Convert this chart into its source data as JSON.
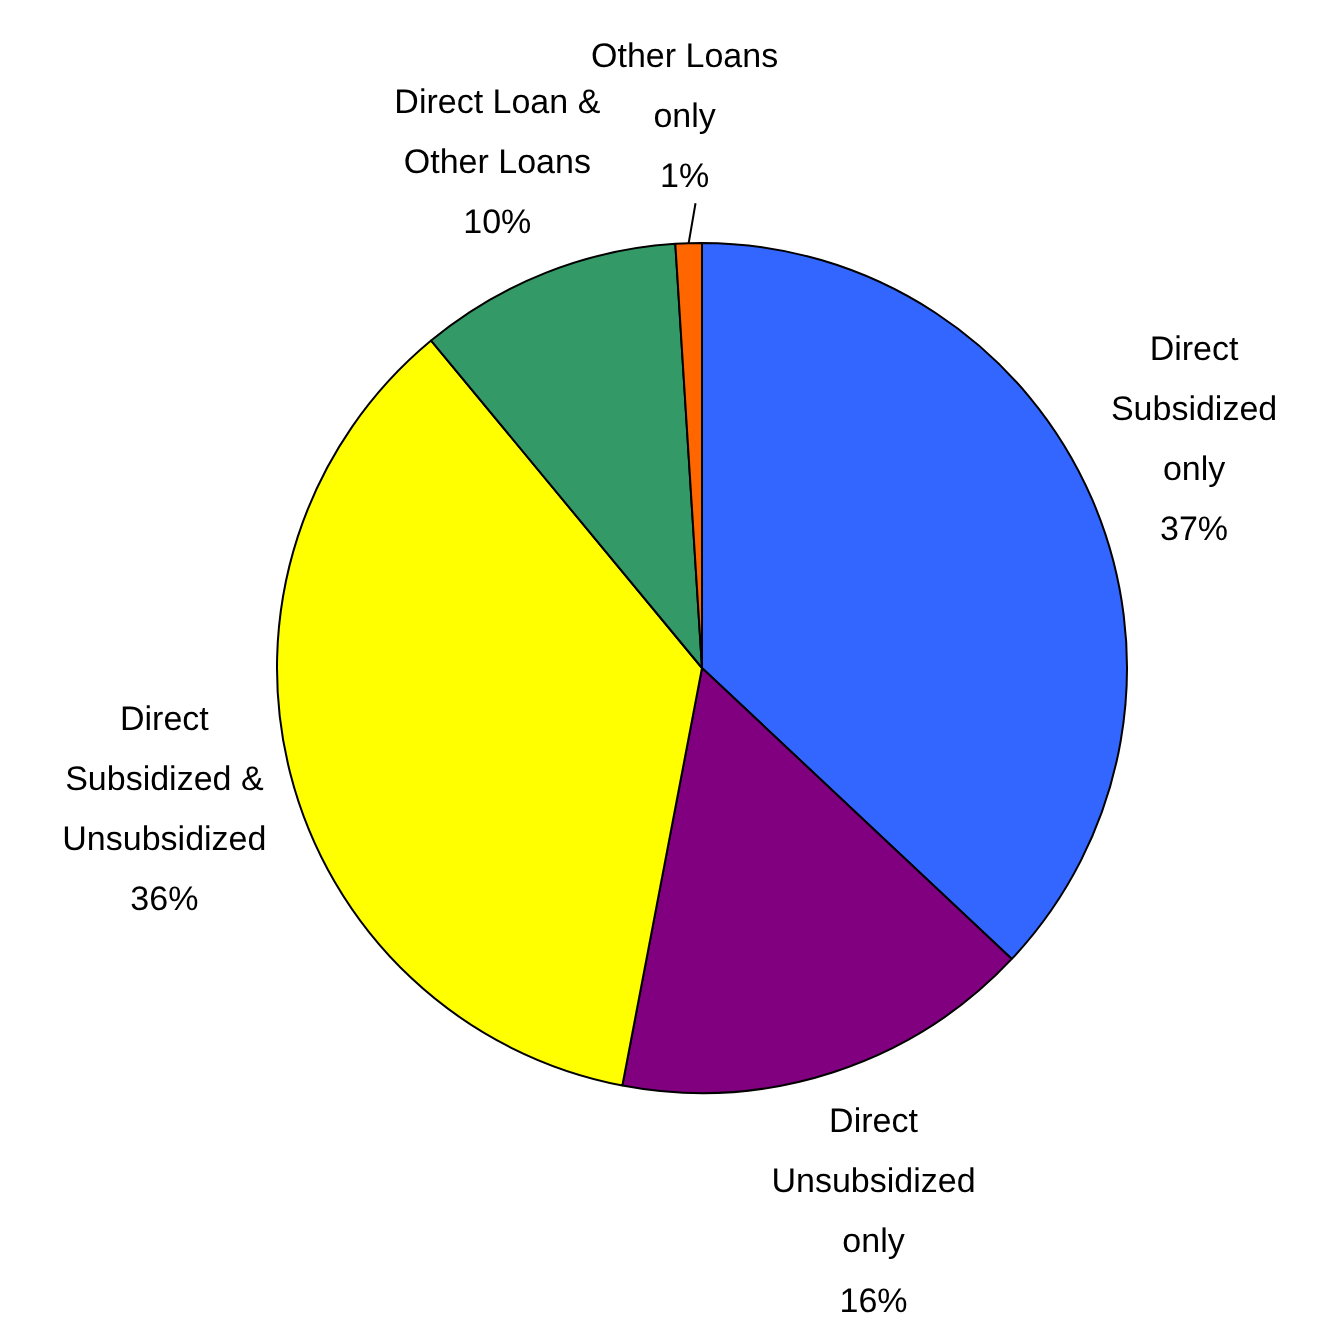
{
  "chart_data": {
    "type": "pie",
    "categories": [
      "Direct Subsidized only",
      "Direct Unsubsidized only",
      "Direct Subsidized & Unsubsidized",
      "Direct Loan & Other Loans",
      "Other Loans only"
    ],
    "values": [
      37,
      16,
      36,
      10,
      1
    ],
    "colors": [
      "#3366ff",
      "#800080",
      "#ffff00",
      "#339966",
      "#ff6600"
    ],
    "value_labels": [
      "37%",
      "16%",
      "36%",
      "10%",
      "1%"
    ],
    "legend": false
  }
}
